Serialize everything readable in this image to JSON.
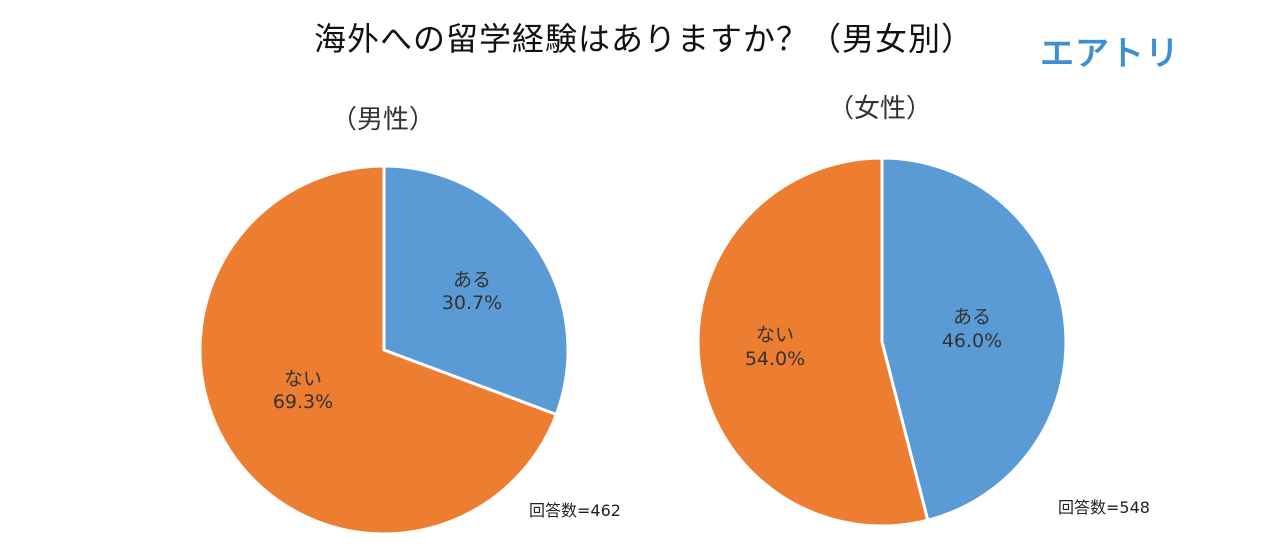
{
  "title": "海外への留学経験はありますか？（男女別）",
  "logo": "エアトリ",
  "colors": {
    "yes": "#5b9bd5",
    "no": "#ed7d31"
  },
  "chart_data": [
    {
      "type": "pie",
      "title": "（男性）",
      "slices": [
        {
          "label": "ある",
          "value": 30.7,
          "display": "30.7%"
        },
        {
          "label": "ない",
          "value": 69.3,
          "display": "69.3%"
        }
      ],
      "note": "回答数=462"
    },
    {
      "type": "pie",
      "title": "（女性）",
      "slices": [
        {
          "label": "ある",
          "value": 46.0,
          "display": "46.0%"
        },
        {
          "label": "ない",
          "value": 54.0,
          "display": "54.0%"
        }
      ],
      "note": "回答数=548"
    }
  ]
}
